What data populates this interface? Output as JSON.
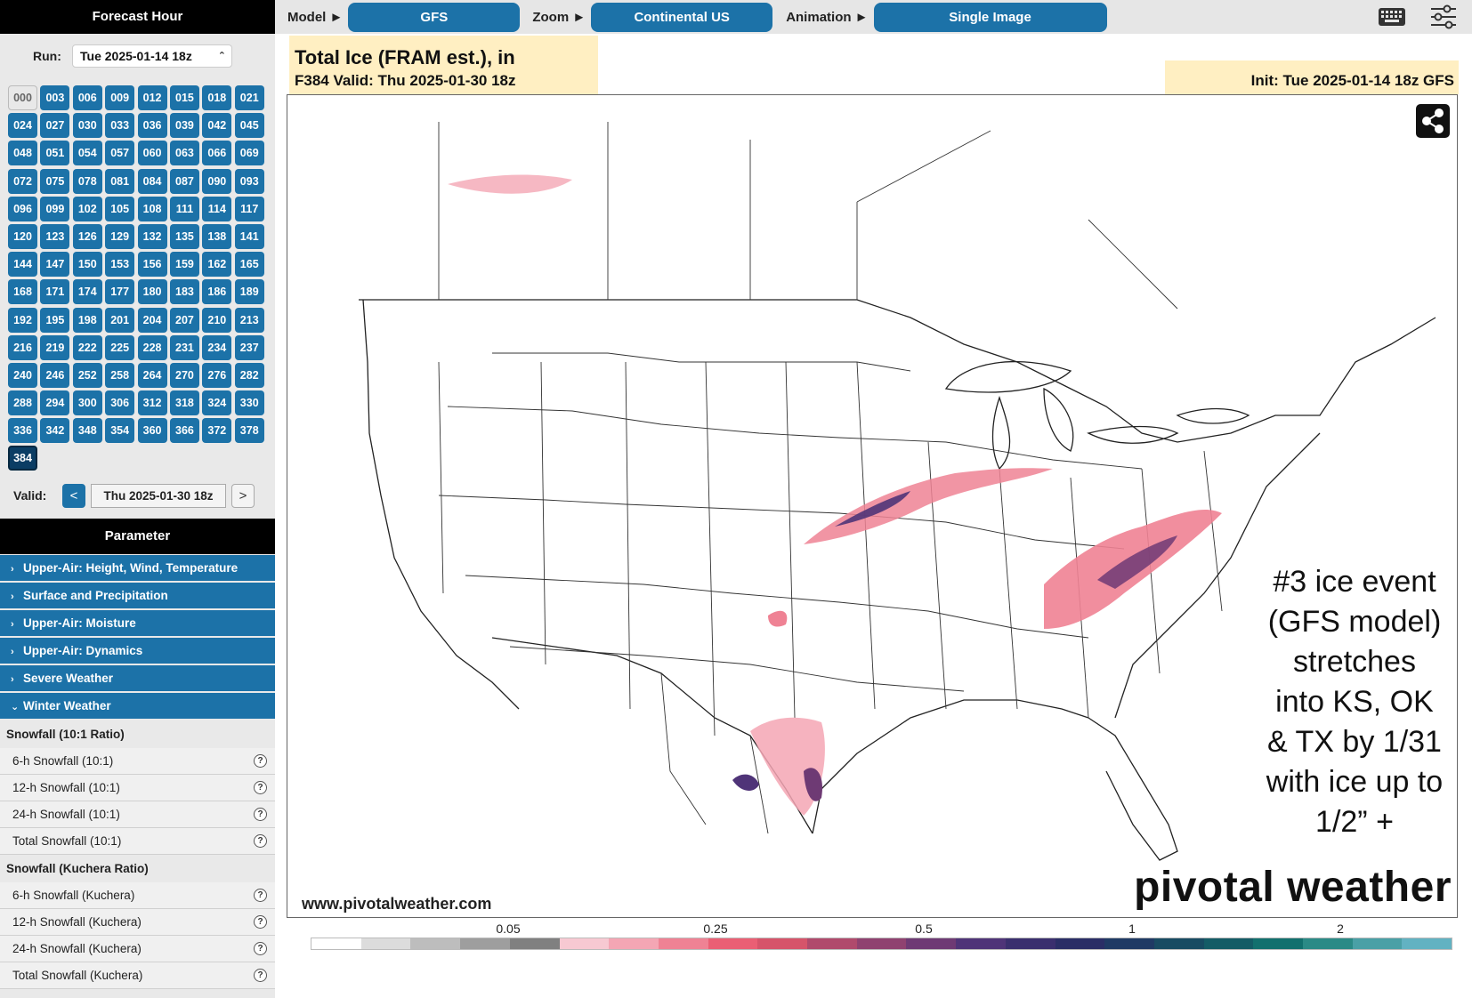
{
  "sidebar": {
    "forecast_hour_title": "Forecast Hour",
    "run_label": "Run:",
    "run_value": "Tue 2025-01-14 18z",
    "hours": [
      "000",
      "003",
      "006",
      "009",
      "012",
      "015",
      "018",
      "021",
      "024",
      "027",
      "030",
      "033",
      "036",
      "039",
      "042",
      "045",
      "048",
      "051",
      "054",
      "057",
      "060",
      "063",
      "066",
      "069",
      "072",
      "075",
      "078",
      "081",
      "084",
      "087",
      "090",
      "093",
      "096",
      "099",
      "102",
      "105",
      "108",
      "111",
      "114",
      "117",
      "120",
      "123",
      "126",
      "129",
      "132",
      "135",
      "138",
      "141",
      "144",
      "147",
      "150",
      "153",
      "156",
      "159",
      "162",
      "165",
      "168",
      "171",
      "174",
      "177",
      "180",
      "183",
      "186",
      "189",
      "192",
      "195",
      "198",
      "201",
      "204",
      "207",
      "210",
      "213",
      "216",
      "219",
      "222",
      "225",
      "228",
      "231",
      "234",
      "237",
      "240",
      "246",
      "252",
      "258",
      "264",
      "270",
      "276",
      "282",
      "288",
      "294",
      "300",
      "306",
      "312",
      "318",
      "324",
      "330",
      "336",
      "342",
      "348",
      "354",
      "360",
      "366",
      "372",
      "378",
      "384"
    ],
    "selected_hour": "384",
    "disabled_hour": "000",
    "valid_label": "Valid:",
    "valid_value": "Thu 2025-01-30 18z",
    "prev_label": "<",
    "next_label": ">",
    "parameter_title": "Parameter",
    "categories": [
      {
        "label": "Upper-Air: Height, Wind, Temperature",
        "expanded": false
      },
      {
        "label": "Surface and Precipitation",
        "expanded": false
      },
      {
        "label": "Upper-Air: Moisture",
        "expanded": false
      },
      {
        "label": "Upper-Air: Dynamics",
        "expanded": false
      },
      {
        "label": "Severe Weather",
        "expanded": false
      },
      {
        "label": "Winter Weather",
        "expanded": true
      }
    ],
    "winter_groups": [
      {
        "title": "Snowfall (10:1 Ratio)",
        "items": [
          "6-h Snowfall (10:1)",
          "12-h Snowfall (10:1)",
          "24-h Snowfall (10:1)",
          "Total Snowfall (10:1)"
        ]
      },
      {
        "title": "Snowfall (Kuchera Ratio)",
        "items": [
          "6-h Snowfall (Kuchera)",
          "12-h Snowfall (Kuchera)",
          "24-h Snowfall (Kuchera)",
          "Total Snowfall (Kuchera)"
        ]
      }
    ]
  },
  "topbar": {
    "model_label": "Model ►",
    "model_value": "GFS",
    "zoom_label": "Zoom ►",
    "zoom_value": "Continental US",
    "animation_label": "Animation ►",
    "animation_value": "Single Image",
    "icons": [
      "keyboard-icon",
      "sliders-icon"
    ]
  },
  "map": {
    "title": "Total Ice (FRAM est.), in",
    "subtitle": "F384 Valid: Thu 2025-01-30 18z",
    "init": "Init: Tue 2025-01-14 18z GFS",
    "url": "www.pivotalweather.com",
    "logo": "pivotal weather",
    "annotation_lines": [
      "#3 ice event",
      "(GFS model)",
      "stretches",
      "into KS, OK",
      "& TX by 1/31",
      "with ice up to",
      "1/2” +"
    ]
  },
  "legend": {
    "ticks": [
      "0.05",
      "0.25",
      "0.5",
      "1",
      "2"
    ],
    "colors": [
      "#ffffff",
      "#dcdcdc",
      "#bdbdbd",
      "#9e9e9e",
      "#808080",
      "#f7c9d2",
      "#f4a6b4",
      "#ef8294",
      "#ea5f74",
      "#d6546a",
      "#b04a6c",
      "#8f4270",
      "#6e3a74",
      "#4f3478",
      "#3a2f6e",
      "#2a2e66",
      "#1f3a64",
      "#184b62",
      "#145c66",
      "#12706e",
      "#2b8a86",
      "#4aa0a6",
      "#62b2c2"
    ]
  },
  "colors": {
    "accent_blue": "#1c72a8",
    "selected_blue": "#0b3d64",
    "header_black": "#000000"
  }
}
